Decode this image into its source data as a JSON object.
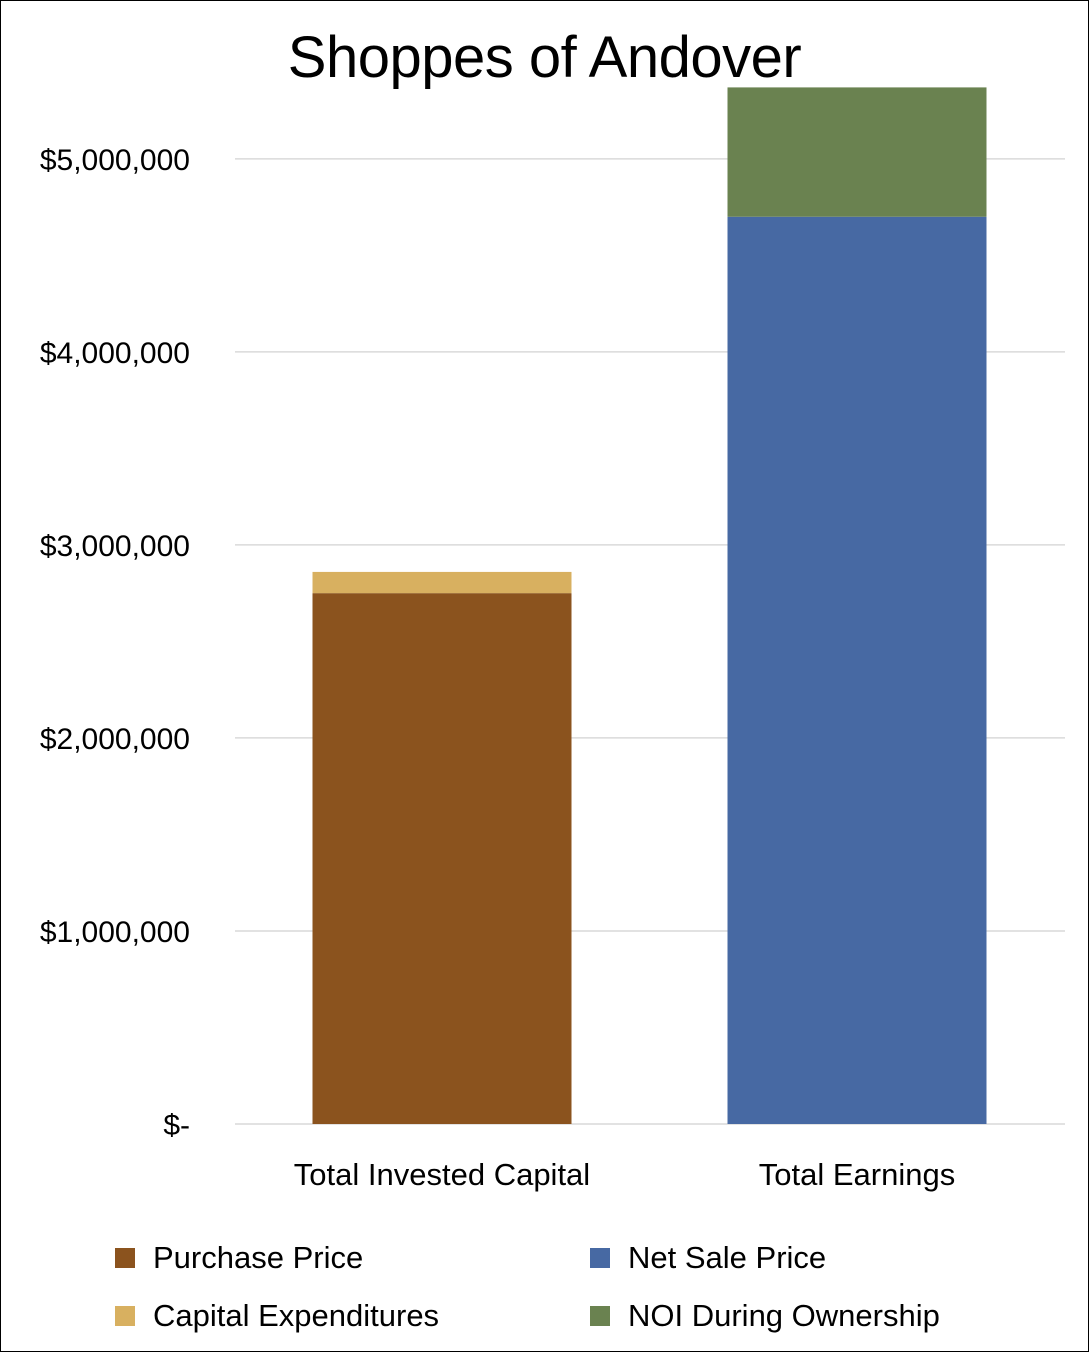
{
  "chart_data": {
    "type": "bar",
    "stacked": true,
    "title": "Shoppes of Andover",
    "categories": [
      "Total Invested Capital",
      "Total Earnings"
    ],
    "series": [
      {
        "name": "Purchase Price",
        "color": "#8B531E",
        "values": [
          2750000,
          0
        ]
      },
      {
        "name": "Capital Expenditures",
        "color": "#D8B060",
        "values": [
          110000,
          0
        ]
      },
      {
        "name": "Net Sale Price",
        "color": "#4769A3",
        "values": [
          0,
          4700000
        ]
      },
      {
        "name": "NOI During Ownership",
        "color": "#6A8250",
        "values": [
          0,
          670000
        ]
      }
    ],
    "ylim": [
      0,
      5600000
    ],
    "yticks": [
      {
        "value": 0,
        "label": "$-"
      },
      {
        "value": 1000000,
        "label": "$1,000,000"
      },
      {
        "value": 2000000,
        "label": "$2,000,000"
      },
      {
        "value": 3000000,
        "label": "$3,000,000"
      },
      {
        "value": 4000000,
        "label": "$4,000,000"
      },
      {
        "value": 5000000,
        "label": "$5,000,000"
      }
    ],
    "grid": true,
    "legend_position": "bottom",
    "gridline_color": "#D9D9D9"
  }
}
